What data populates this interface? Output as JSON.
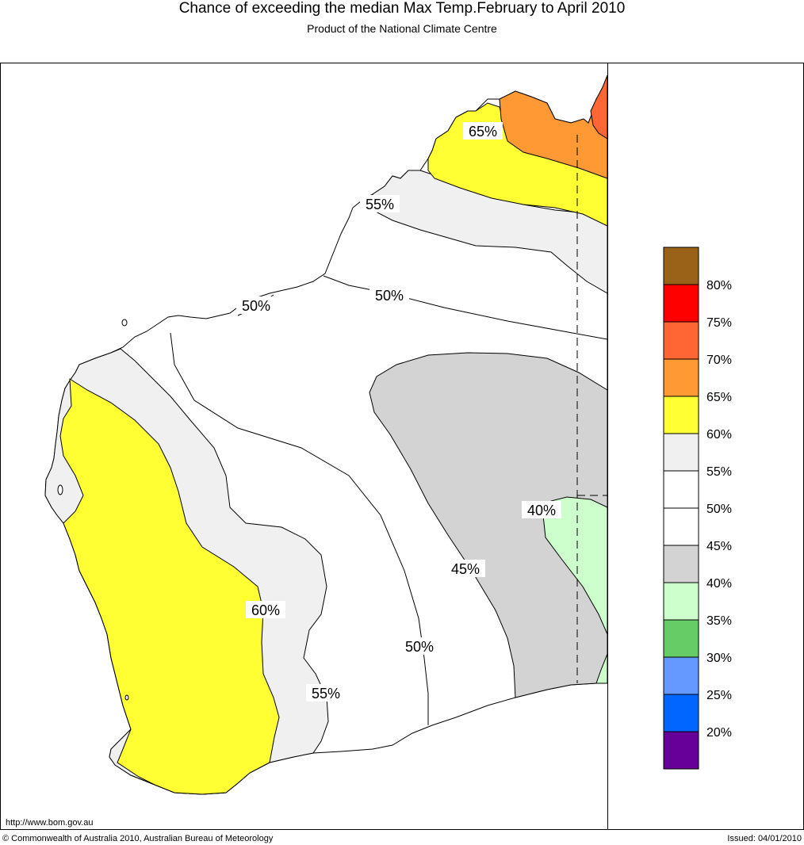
{
  "title": "Chance of exceeding the median Max Temp.February to April 2010",
  "subtitle": "Product of the National Climate Centre",
  "url": "http://www.bom.gov.au",
  "copyright": "© Commonwealth of Australia 2010, Australian Bureau of Meteorology",
  "issued": "Issued: 04/01/2010",
  "map_labels": [
    "65%",
    "55%",
    "50%",
    "50%",
    "40%",
    "45%",
    "60%",
    "50%",
    "55%"
  ],
  "legend": {
    "entries": [
      {
        "label": "80%",
        "color": "#9a6218"
      },
      {
        "label": "75%",
        "color": "#ff0000"
      },
      {
        "label": "70%",
        "color": "#ff6633"
      },
      {
        "label": "65%",
        "color": "#ff9933"
      },
      {
        "label": "60%",
        "color": "#ffff33"
      },
      {
        "label": "55%",
        "color": "#f0f0f0"
      },
      {
        "label": "50%",
        "color": "#ffffff"
      },
      {
        "label": "45%",
        "color": "#ffffff"
      },
      {
        "label": "40%",
        "color": "#d3d3d3"
      },
      {
        "label": "35%",
        "color": "#ccffcc"
      },
      {
        "label": "30%",
        "color": "#66cc66"
      },
      {
        "label": "25%",
        "color": "#6699ff"
      },
      {
        "label": "20%",
        "color": "#0066ff"
      },
      {
        "label": "",
        "color": "#660099"
      }
    ]
  }
}
